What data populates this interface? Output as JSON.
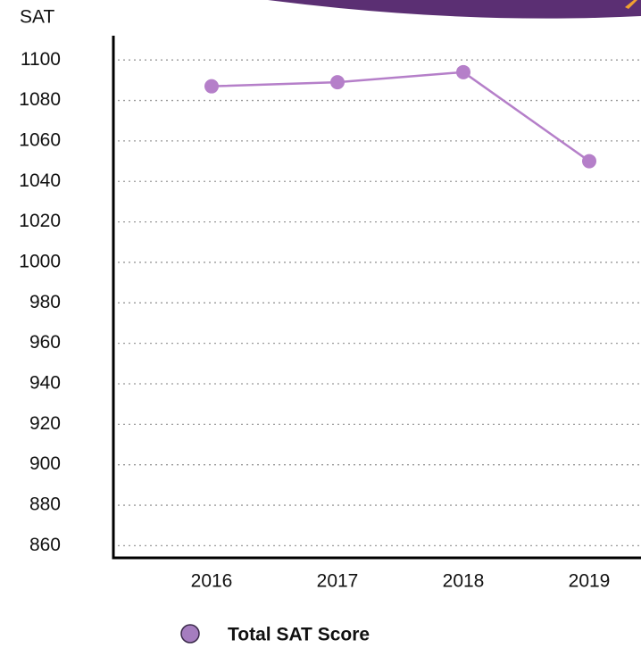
{
  "chart_data": {
    "type": "line",
    "y_axis_label": "SAT",
    "categories": [
      "2016",
      "2017",
      "2018",
      "2019"
    ],
    "series": [
      {
        "name": "Total SAT Score",
        "color": "#b57fc9",
        "values": [
          1087,
          1089,
          1094,
          1050
        ]
      }
    ],
    "ylim": [
      854,
      1112
    ],
    "yticks": [
      860,
      880,
      900,
      920,
      940,
      960,
      980,
      1000,
      1020,
      1040,
      1060,
      1080,
      1100
    ],
    "grid": true
  }
}
